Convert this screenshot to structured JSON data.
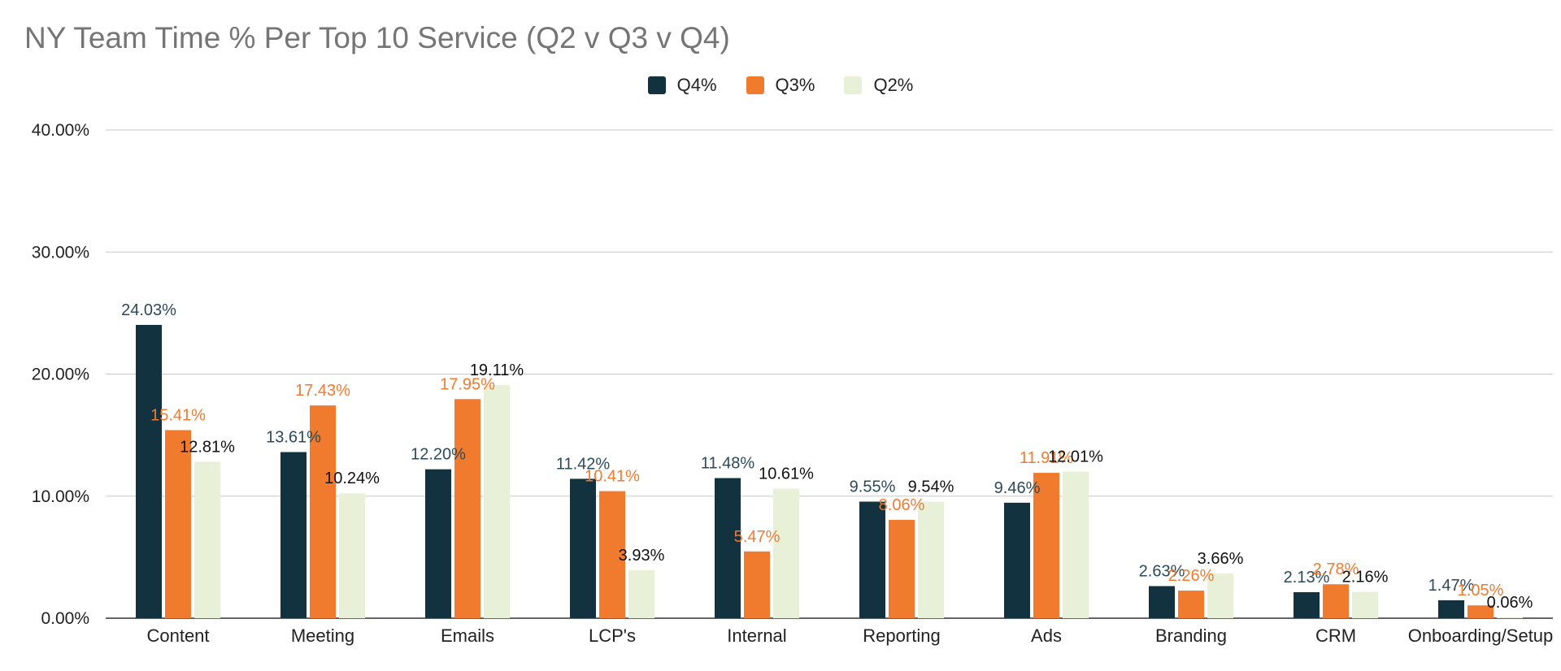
{
  "chart_data": {
    "type": "bar",
    "title": "NY Team Time % Per Top 10 Service (Q2 v Q3 v Q4)",
    "xlabel": "",
    "ylabel": "",
    "ylim": [
      0,
      40
    ],
    "yticks": [
      0,
      10,
      20,
      30,
      40
    ],
    "ytick_labels": [
      "0.00%",
      "10.00%",
      "20.00%",
      "30.00%",
      "40.00%"
    ],
    "grid": true,
    "legend_position": "top-center",
    "categories": [
      "Content",
      "Meeting",
      "Emails",
      "LCP's",
      "Internal",
      "Reporting",
      "Ads",
      "Branding",
      "CRM",
      "Onboarding/Setup"
    ],
    "series": [
      {
        "name": "Q4%",
        "color": "#12323f",
        "label_color": "#2b4a5a",
        "values": [
          24.03,
          13.61,
          12.2,
          11.42,
          11.48,
          9.55,
          9.46,
          2.63,
          2.13,
          1.47
        ],
        "labels": [
          "24.03%",
          "13.61%",
          "12.20%",
          "11.42%",
          "11.48%",
          "9.55%",
          "9.46%",
          "2.63%",
          "2.13%",
          "1.47%"
        ]
      },
      {
        "name": "Q3%",
        "color": "#f07b2f",
        "label_color": "#f07b2f",
        "values": [
          15.41,
          17.43,
          17.95,
          10.41,
          5.47,
          8.06,
          11.91,
          2.26,
          2.78,
          1.05
        ],
        "labels": [
          "15.41%",
          "17.43%",
          "17.95%",
          "10.41%",
          "5.47%",
          "8.06%",
          "11.91%",
          "2.26%",
          "2.78%",
          "1.05%"
        ]
      },
      {
        "name": "Q2%",
        "color": "#e8f0d8",
        "label_color": "#111111",
        "values": [
          12.81,
          10.24,
          19.11,
          3.93,
          10.61,
          9.54,
          12.01,
          3.66,
          2.16,
          0.06
        ],
        "labels": [
          "12.81%",
          "10.24%",
          "19.11%",
          "3.93%",
          "10.61%",
          "9.54%",
          "12.01%",
          "3.66%",
          "2.16%",
          "0.06%"
        ]
      }
    ]
  }
}
